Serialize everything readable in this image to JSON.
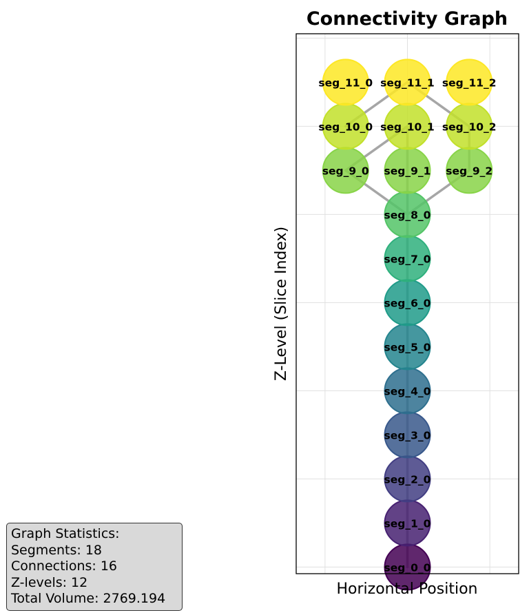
{
  "chart_data": {
    "type": "scatter",
    "title": "Connectivity Graph",
    "xlabel": "Horizontal Position",
    "ylabel": "Z-Level (Slice Index)",
    "grid": true,
    "xlim": [
      -1.35,
      1.35
    ],
    "ylim": [
      -0.15,
      12.1
    ],
    "nodes": [
      {
        "id": "seg_0_0",
        "x": 0,
        "z": 0
      },
      {
        "id": "seg_1_0",
        "x": 0,
        "z": 1
      },
      {
        "id": "seg_2_0",
        "x": 0,
        "z": 2
      },
      {
        "id": "seg_3_0",
        "x": 0,
        "z": 3
      },
      {
        "id": "seg_4_0",
        "x": 0,
        "z": 4
      },
      {
        "id": "seg_5_0",
        "x": 0,
        "z": 5
      },
      {
        "id": "seg_6_0",
        "x": 0,
        "z": 6
      },
      {
        "id": "seg_7_0",
        "x": 0,
        "z": 7
      },
      {
        "id": "seg_8_0",
        "x": 0,
        "z": 8
      },
      {
        "id": "seg_9_0",
        "x": -0.75,
        "z": 9
      },
      {
        "id": "seg_9_1",
        "x": 0,
        "z": 9
      },
      {
        "id": "seg_9_2",
        "x": 0.75,
        "z": 9
      },
      {
        "id": "seg_10_0",
        "x": -0.75,
        "z": 10
      },
      {
        "id": "seg_10_1",
        "x": 0,
        "z": 10
      },
      {
        "id": "seg_10_2",
        "x": 0.75,
        "z": 10
      },
      {
        "id": "seg_11_0",
        "x": -0.75,
        "z": 11
      },
      {
        "id": "seg_11_1",
        "x": 0,
        "z": 11
      },
      {
        "id": "seg_11_2",
        "x": 0.75,
        "z": 11
      }
    ],
    "edges": [
      [
        "seg_0_0",
        "seg_1_0"
      ],
      [
        "seg_1_0",
        "seg_2_0"
      ],
      [
        "seg_2_0",
        "seg_3_0"
      ],
      [
        "seg_3_0",
        "seg_4_0"
      ],
      [
        "seg_4_0",
        "seg_5_0"
      ],
      [
        "seg_5_0",
        "seg_6_0"
      ],
      [
        "seg_6_0",
        "seg_7_0"
      ],
      [
        "seg_7_0",
        "seg_8_0"
      ],
      [
        "seg_8_0",
        "seg_9_0"
      ],
      [
        "seg_8_0",
        "seg_9_1"
      ],
      [
        "seg_8_0",
        "seg_9_2"
      ],
      [
        "seg_9_0",
        "seg_10_1"
      ],
      [
        "seg_9_1",
        "seg_10_1"
      ],
      [
        "seg_9_2",
        "seg_10_2"
      ],
      [
        "seg_10_0",
        "seg_11_1"
      ],
      [
        "seg_10_2",
        "seg_11_1"
      ]
    ],
    "colormap": "viridis",
    "edge_color": "#a6a6a6"
  },
  "stats": {
    "heading": "Graph Statistics:",
    "segments": "Segments: 18",
    "connections": "Connections: 16",
    "zlevels": "Z-levels: 12",
    "volume": "Total Volume: 2769.194"
  }
}
